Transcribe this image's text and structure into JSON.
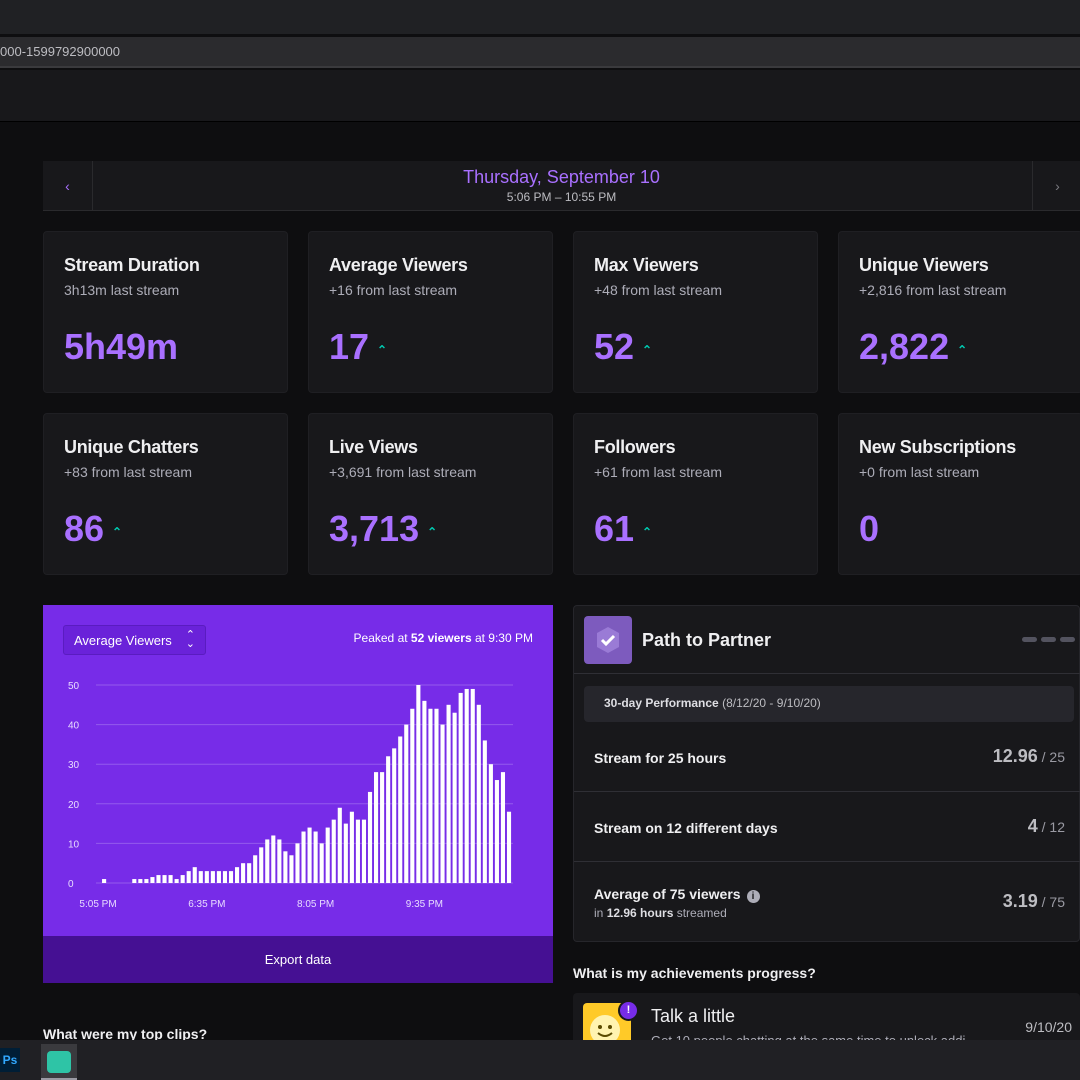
{
  "browser": {
    "url_fragment": "000-1599792900000"
  },
  "date_nav": {
    "prev_icon": "‹",
    "next_icon": "›",
    "title": "Thursday, September 10",
    "range": "5:06 PM – 10:55 PM"
  },
  "stats": [
    {
      "title": "Stream Duration",
      "sub": "3h13m last stream",
      "value": "5h49m",
      "up": ""
    },
    {
      "title": "Average Viewers",
      "sub": "+16 from last stream",
      "value": "17",
      "up": "⌃"
    },
    {
      "title": "Max Viewers",
      "sub": "+48 from last stream",
      "value": "52",
      "up": "⌃"
    },
    {
      "title": "Unique Viewers",
      "sub": "+2,816 from last stream",
      "value": "2,822",
      "up": "⌃"
    },
    {
      "title": "Unique Chatters",
      "sub": "+83 from last stream",
      "value": "86",
      "up": "⌃"
    },
    {
      "title": "Live Views",
      "sub": "+3,691 from last stream",
      "value": "3,713",
      "up": "⌃"
    },
    {
      "title": "Followers",
      "sub": "+61 from last stream",
      "value": "61",
      "up": "⌃"
    },
    {
      "title": "New Subscriptions",
      "sub": "+0 from last stream",
      "value": "0",
      "up": ""
    }
  ],
  "chart_panel": {
    "select_label": "Average Viewers",
    "peak_prefix": "Peaked at ",
    "peak_bold": "52 viewers",
    "peak_suffix": " at 9:30 PM",
    "export_label": "Export data"
  },
  "chart_data": {
    "type": "bar",
    "ylabel": "",
    "xlabel": "",
    "ylim": [
      0,
      50
    ],
    "yticks": [
      0,
      10,
      20,
      30,
      40,
      50
    ],
    "xtick_labels": [
      "5:05 PM",
      "6:35 PM",
      "8:05 PM",
      "9:35 PM"
    ],
    "xtick_index": [
      0,
      18,
      36,
      54
    ],
    "series": [
      {
        "values": [
          0,
          1,
          0,
          0,
          0,
          0,
          1,
          1,
          1,
          1.5,
          2,
          2,
          2,
          1,
          2,
          3,
          4,
          3,
          3,
          3,
          3,
          3,
          3,
          4,
          5,
          5,
          7,
          9,
          11,
          12,
          11,
          8,
          7,
          10,
          13,
          14,
          13,
          10,
          14,
          16,
          19,
          15,
          18,
          16,
          16,
          23,
          28,
          28,
          32,
          34,
          37,
          40,
          44,
          50,
          46,
          44,
          44,
          40,
          45,
          43,
          48,
          49,
          49,
          45,
          36,
          30,
          26,
          28,
          18
        ]
      }
    ]
  },
  "partner": {
    "title": "Path to Partner",
    "perf_bold": "30-day Performance",
    "perf_range": " (8/12/20 - 9/10/20)",
    "rows": [
      {
        "label": "Stream for 25 hours",
        "value": "12.96",
        "target": " / 25"
      },
      {
        "label": "Stream on 12 different days",
        "value": "4",
        "target": " / 12"
      },
      {
        "label": "Average of 75 viewers",
        "info": "i",
        "sub_prefix": "in ",
        "sub_bold": "12.96 hours",
        "sub_suffix": " streamed",
        "value": "3.19",
        "target": " / 75"
      }
    ]
  },
  "sections": {
    "achievements": "What is my achievements progress?",
    "clips": "What were my top clips?"
  },
  "achievement": {
    "notif": "!",
    "title": "Talk a little",
    "desc": "Get 10 people chatting at the same time to unlock addi",
    "date": "9/10/20"
  },
  "taskbar": {
    "ps_label": "Ps"
  },
  "colors": {
    "accent": "#a970ff",
    "chart_bg": "#772ce8",
    "up": "#00c8af"
  }
}
